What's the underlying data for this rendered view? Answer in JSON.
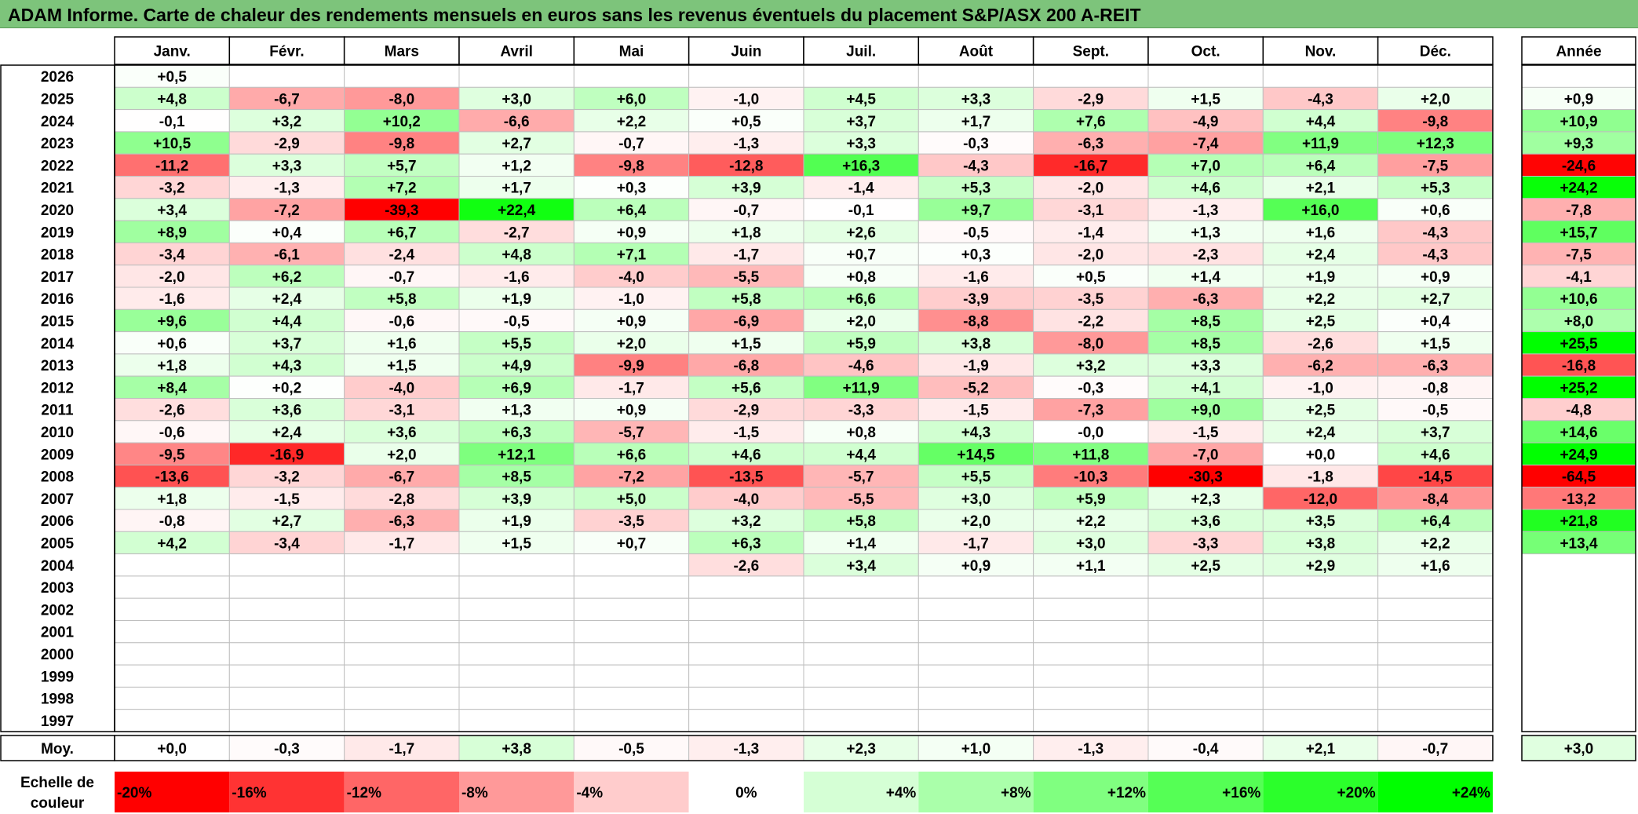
{
  "title": "ADAM Informe. Carte de chaleur des rendements mensuels en euros sans les revenus éventuels du placement S&P/ASX 200 A-REIT",
  "colors": {
    "negative_max": "#ff0000",
    "neutral": "#ffffff",
    "positive_max": "#00ff00",
    "title_bg": "#7dc47b",
    "grid_line": "#bfbfbf",
    "border": "#000000"
  },
  "chart_data": {
    "type": "heatmap",
    "title": "ADAM Informe. Carte de chaleur des rendements mensuels en euros sans les revenus éventuels du placement S&P/ASX 200 A-REIT",
    "months": [
      "Janv.",
      "Févr.",
      "Mars",
      "Avril",
      "Mai",
      "Juin",
      "Juil.",
      "Août",
      "Sept.",
      "Oct.",
      "Nov.",
      "Déc."
    ],
    "year_header": "Année",
    "color_scale_monthly": [
      -20,
      24
    ],
    "rows": [
      {
        "year": "2026",
        "values": [
          "+0,5",
          "",
          "",
          "",
          "",
          "",
          "",
          "",
          "",
          "",
          "",
          ""
        ],
        "annual": ""
      },
      {
        "year": "2025",
        "values": [
          "+4,8",
          "-6,7",
          "-8,0",
          "+3,0",
          "+6,0",
          "-1,0",
          "+4,5",
          "+3,3",
          "-2,9",
          "+1,5",
          "-4,3",
          "+2,0"
        ],
        "annual": "+0,9"
      },
      {
        "year": "2024",
        "values": [
          "-0,1",
          "+3,2",
          "+10,2",
          "-6,6",
          "+2,2",
          "+0,5",
          "+3,7",
          "+1,7",
          "+7,6",
          "-4,9",
          "+4,4",
          "-9,8"
        ],
        "annual": "+10,9"
      },
      {
        "year": "2023",
        "values": [
          "+10,5",
          "-2,9",
          "-9,8",
          "+2,7",
          "-0,7",
          "-1,3",
          "+3,3",
          "-0,3",
          "-6,3",
          "-7,4",
          "+11,9",
          "+12,3"
        ],
        "annual": "+9,3"
      },
      {
        "year": "2022",
        "values": [
          "-11,2",
          "+3,3",
          "+5,7",
          "+1,2",
          "-9,8",
          "-12,8",
          "+16,3",
          "-4,3",
          "-16,7",
          "+7,0",
          "+6,4",
          "-7,5"
        ],
        "annual": "-24,6"
      },
      {
        "year": "2021",
        "values": [
          "-3,2",
          "-1,3",
          "+7,2",
          "+1,7",
          "+0,3",
          "+3,9",
          "-1,4",
          "+5,3",
          "-2,0",
          "+4,6",
          "+2,1",
          "+5,3"
        ],
        "annual": "+24,2"
      },
      {
        "year": "2020",
        "values": [
          "+3,4",
          "-7,2",
          "-39,3",
          "+22,4",
          "+6,4",
          "-0,7",
          "-0,1",
          "+9,7",
          "-3,1",
          "-1,3",
          "+16,0",
          "+0,6"
        ],
        "annual": "-7,8"
      },
      {
        "year": "2019",
        "values": [
          "+8,9",
          "+0,4",
          "+6,7",
          "-2,7",
          "+0,9",
          "+1,8",
          "+2,6",
          "-0,5",
          "-1,4",
          "+1,3",
          "+1,6",
          "-4,3"
        ],
        "annual": "+15,7"
      },
      {
        "year": "2018",
        "values": [
          "-3,4",
          "-6,1",
          "-2,4",
          "+4,8",
          "+7,1",
          "-1,7",
          "+0,7",
          "+0,3",
          "-2,0",
          "-2,3",
          "+2,4",
          "-4,3"
        ],
        "annual": "-7,5"
      },
      {
        "year": "2017",
        "values": [
          "-2,0",
          "+6,2",
          "-0,7",
          "-1,6",
          "-4,0",
          "-5,5",
          "+0,8",
          "-1,6",
          "+0,5",
          "+1,4",
          "+1,9",
          "+0,9"
        ],
        "annual": "-4,1"
      },
      {
        "year": "2016",
        "values": [
          "-1,6",
          "+2,4",
          "+5,8",
          "+1,9",
          "-1,0",
          "+5,8",
          "+6,6",
          "-3,9",
          "-3,5",
          "-6,3",
          "+2,2",
          "+2,7"
        ],
        "annual": "+10,6"
      },
      {
        "year": "2015",
        "values": [
          "+9,6",
          "+4,4",
          "-0,6",
          "-0,5",
          "+0,9",
          "-6,9",
          "+2,0",
          "-8,8",
          "-2,2",
          "+8,5",
          "+2,5",
          "+0,4"
        ],
        "annual": "+8,0"
      },
      {
        "year": "2014",
        "values": [
          "+0,6",
          "+3,7",
          "+1,6",
          "+5,5",
          "+2,0",
          "+1,5",
          "+5,9",
          "+3,8",
          "-8,0",
          "+8,5",
          "-2,6",
          "+1,5"
        ],
        "annual": "+25,5"
      },
      {
        "year": "2013",
        "values": [
          "+1,8",
          "+4,3",
          "+1,5",
          "+4,9",
          "-9,9",
          "-6,8",
          "-4,6",
          "-1,9",
          "+3,2",
          "+3,3",
          "-6,2",
          "-6,3"
        ],
        "annual": "-16,8"
      },
      {
        "year": "2012",
        "values": [
          "+8,4",
          "+0,2",
          "-4,0",
          "+6,9",
          "-1,7",
          "+5,6",
          "+11,9",
          "-5,2",
          "-0,3",
          "+4,1",
          "-1,0",
          "-0,8"
        ],
        "annual": "+25,2"
      },
      {
        "year": "2011",
        "values": [
          "-2,6",
          "+3,6",
          "-3,1",
          "+1,3",
          "+0,9",
          "-2,9",
          "-3,3",
          "-1,5",
          "-7,3",
          "+9,0",
          "+2,5",
          "-0,5"
        ],
        "annual": "-4,8"
      },
      {
        "year": "2010",
        "values": [
          "-0,6",
          "+2,4",
          "+3,6",
          "+6,3",
          "-5,7",
          "-1,5",
          "+0,8",
          "+4,3",
          "-0,0",
          "-1,5",
          "+2,4",
          "+3,7"
        ],
        "annual": "+14,6"
      },
      {
        "year": "2009",
        "values": [
          "-9,5",
          "-16,9",
          "+2,0",
          "+12,1",
          "+6,6",
          "+4,6",
          "+4,4",
          "+14,5",
          "+11,8",
          "-7,0",
          "+0,0",
          "+4,6"
        ],
        "annual": "+24,9"
      },
      {
        "year": "2008",
        "values": [
          "-13,6",
          "-3,2",
          "-6,7",
          "+8,5",
          "-7,2",
          "-13,5",
          "-5,7",
          "+5,5",
          "-10,3",
          "-30,3",
          "-1,8",
          "-14,5"
        ],
        "annual": "-64,5"
      },
      {
        "year": "2007",
        "values": [
          "+1,8",
          "-1,5",
          "-2,8",
          "+3,9",
          "+5,0",
          "-4,0",
          "-5,5",
          "+3,0",
          "+5,9",
          "+2,3",
          "-12,0",
          "-8,4"
        ],
        "annual": "-13,2"
      },
      {
        "year": "2006",
        "values": [
          "-0,8",
          "+2,7",
          "-6,3",
          "+1,9",
          "-3,5",
          "+3,2",
          "+5,8",
          "+2,0",
          "+2,2",
          "+3,6",
          "+3,5",
          "+6,4"
        ],
        "annual": "+21,8"
      },
      {
        "year": "2005",
        "values": [
          "+4,2",
          "-3,4",
          "-1,7",
          "+1,5",
          "+0,7",
          "+6,3",
          "+1,4",
          "-1,7",
          "+3,0",
          "-3,3",
          "+3,8",
          "+2,2"
        ],
        "annual": "+13,4"
      },
      {
        "year": "2004",
        "values": [
          "",
          "",
          "",
          "",
          "",
          "-2,6",
          "+3,4",
          "+0,9",
          "+1,1",
          "+2,5",
          "+2,9",
          "+1,6"
        ],
        "annual": ""
      },
      {
        "year": "2003",
        "values": [
          "",
          "",
          "",
          "",
          "",
          "",
          "",
          "",
          "",
          "",
          "",
          ""
        ],
        "annual": ""
      },
      {
        "year": "2002",
        "values": [
          "",
          "",
          "",
          "",
          "",
          "",
          "",
          "",
          "",
          "",
          "",
          ""
        ],
        "annual": ""
      },
      {
        "year": "2001",
        "values": [
          "",
          "",
          "",
          "",
          "",
          "",
          "",
          "",
          "",
          "",
          "",
          ""
        ],
        "annual": ""
      },
      {
        "year": "2000",
        "values": [
          "",
          "",
          "",
          "",
          "",
          "",
          "",
          "",
          "",
          "",
          "",
          ""
        ],
        "annual": ""
      },
      {
        "year": "1999",
        "values": [
          "",
          "",
          "",
          "",
          "",
          "",
          "",
          "",
          "",
          "",
          "",
          ""
        ],
        "annual": ""
      },
      {
        "year": "1998",
        "values": [
          "",
          "",
          "",
          "",
          "",
          "",
          "",
          "",
          "",
          "",
          "",
          ""
        ],
        "annual": ""
      },
      {
        "year": "1997",
        "values": [
          "",
          "",
          "",
          "",
          "",
          "",
          "",
          "",
          "",
          "",
          "",
          ""
        ],
        "annual": ""
      }
    ],
    "average_row": {
      "label": "Moy.",
      "values": [
        "+0,0",
        "-0,3",
        "-1,7",
        "+3,8",
        "-0,5",
        "-1,3",
        "+2,3",
        "+1,0",
        "-1,3",
        "-0,4",
        "+2,1",
        "-0,7"
      ],
      "annual": "+3,0"
    },
    "scale": {
      "label": "Echelle de couleur",
      "steps": [
        "-20%",
        "-16%",
        "-12%",
        "-8%",
        "-4%",
        "0%",
        "+4%",
        "+8%",
        "+12%",
        "+16%",
        "+20%",
        "+24%"
      ],
      "values": [
        -20,
        -16,
        -12,
        -8,
        -4,
        0,
        4,
        8,
        12,
        16,
        20,
        24
      ]
    }
  }
}
